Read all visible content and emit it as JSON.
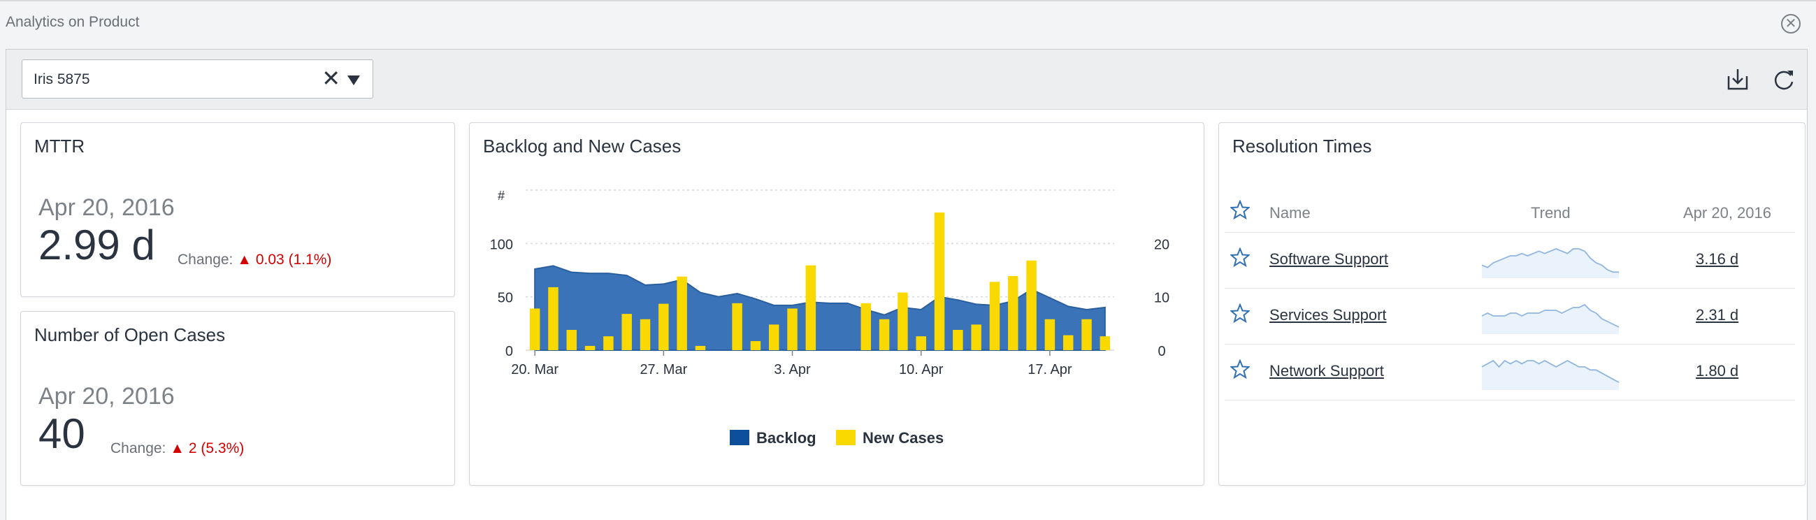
{
  "window": {
    "title": "Analytics on Product",
    "close_icon": "close-circle-icon"
  },
  "toolbar": {
    "filter_value": "Iris 5875",
    "clear_symbol": "✕",
    "download_icon": "download-icon",
    "refresh_icon": "refresh-icon"
  },
  "mttr": {
    "title": "MTTR",
    "date": "Apr 20, 2016",
    "value": "2.99 d",
    "change_label": "Change:",
    "change_value": "▲ 0.03 (1.1%)"
  },
  "open_cases": {
    "title": "Number of Open Cases",
    "date": "Apr 20, 2016",
    "value": "40",
    "change_label": "Change:",
    "change_value": "▲ 2 (5.3%)"
  },
  "colors": {
    "backlog": "#3b73b9",
    "backlog_legend": "#0e4f9c",
    "new_cases": "#f9d900",
    "negative": "#d40000"
  },
  "chart_data": {
    "type": "bar",
    "title": "Backlog and New Cases",
    "ylabel": "#",
    "x_ticks": [
      "20. Mar",
      "27. Mar",
      "3. Apr",
      "10. Apr",
      "17. Apr"
    ],
    "ylim": [
      0,
      150
    ],
    "y_ticks": [
      0,
      50,
      100
    ],
    "y2lim": [
      0,
      30
    ],
    "y2_ticks": [
      0,
      10,
      20
    ],
    "series": [
      {
        "name": "Backlog",
        "type": "area",
        "axis": "left",
        "values": [
          76,
          79,
          73,
          72,
          72,
          70,
          61,
          62,
          66,
          54,
          50,
          53,
          48,
          42,
          42,
          45,
          44,
          44,
          38,
          33,
          40,
          38,
          50,
          47,
          43,
          42,
          46,
          57,
          49,
          41,
          38,
          40
        ]
      },
      {
        "name": "New Cases",
        "type": "bar",
        "axis": "right",
        "values": [
          7.8,
          11.8,
          3.8,
          0.8,
          2.6,
          6.8,
          5.8,
          8.7,
          13.8,
          0.8,
          0,
          8.8,
          1.7,
          4.8,
          7.8,
          15.9,
          0,
          0,
          8.8,
          5.8,
          10.8,
          2.6,
          25.8,
          3.8,
          4.8,
          12.8,
          13.9,
          16.8,
          5.8,
          2.8,
          5.8,
          2.6
        ]
      }
    ],
    "legend": "bottom"
  },
  "resolution": {
    "title": "Resolution Times",
    "col_name": "Name",
    "col_trend": "Trend",
    "col_date": "Apr 20, 2016",
    "rows": [
      {
        "name": "Software Support",
        "value": "3.16 d",
        "trend": [
          5,
          4,
          6,
          7,
          8,
          9,
          9,
          10,
          9,
          10,
          11,
          10,
          11,
          12,
          11,
          10,
          12,
          12,
          11,
          8,
          6,
          5,
          3,
          2,
          2
        ]
      },
      {
        "name": "Services Support",
        "value": "2.31 d",
        "trend": [
          6,
          7,
          6,
          6,
          6,
          7,
          7,
          6,
          7,
          7,
          7,
          8,
          8,
          8,
          7,
          8,
          9,
          9,
          10,
          8,
          7,
          5,
          4,
          3,
          2
        ]
      },
      {
        "name": "Network Support",
        "value": "1.80 d",
        "trend": [
          7,
          8,
          9,
          7,
          9,
          8,
          9,
          8,
          9,
          9,
          8,
          9,
          8,
          7,
          8,
          9,
          8,
          7,
          7,
          6,
          6,
          5,
          4,
          3,
          2
        ]
      }
    ]
  }
}
